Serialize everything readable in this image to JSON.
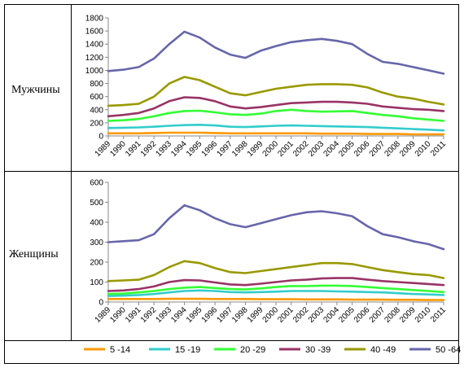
{
  "rows": [
    {
      "label": "Мужчины"
    },
    {
      "label": "Женщины"
    }
  ],
  "legend": {
    "items": [
      {
        "label": "5 -14",
        "color": "#ff9900"
      },
      {
        "label": "15 -19",
        "color": "#33cccc"
      },
      {
        "label": "20 -29",
        "color": "#33ff33"
      },
      {
        "label": "30 -39",
        "color": "#993366"
      },
      {
        "label": "40 -49",
        "color": "#999900"
      },
      {
        "label": "50 -64",
        "color": "#6666aa"
      }
    ]
  },
  "chart_data": [
    {
      "type": "line",
      "row": "Мужчины",
      "x": [
        "1989",
        "1990",
        "1991",
        "1992",
        "1993",
        "1994",
        "1995",
        "1996",
        "1997",
        "1998",
        "1999",
        "2000",
        "2001",
        "2002",
        "2003",
        "2004",
        "2005",
        "2006",
        "2007",
        "2008",
        "2009",
        "2010",
        "2011"
      ],
      "ylim": [
        0,
        1800
      ],
      "yticks": [
        0,
        200,
        400,
        600,
        800,
        1000,
        1200,
        1400,
        1600,
        1800
      ],
      "grid": false,
      "series": [
        {
          "name": "5 -14",
          "color": "#ff9900",
          "values": [
            40,
            40,
            40,
            45,
            50,
            50,
            50,
            45,
            40,
            40,
            40,
            40,
            40,
            40,
            35,
            35,
            35,
            30,
            30,
            30,
            25,
            25,
            25
          ]
        },
        {
          "name": "15 -19",
          "color": "#33cccc",
          "values": [
            120,
            125,
            130,
            140,
            155,
            165,
            170,
            160,
            140,
            135,
            145,
            155,
            160,
            155,
            150,
            145,
            140,
            135,
            125,
            115,
            105,
            95,
            85
          ]
        },
        {
          "name": "20 -29",
          "color": "#33ff33",
          "values": [
            230,
            240,
            260,
            300,
            350,
            380,
            385,
            360,
            330,
            320,
            340,
            380,
            400,
            380,
            370,
            375,
            380,
            350,
            320,
            300,
            270,
            250,
            230
          ]
        },
        {
          "name": "30 -39",
          "color": "#993366",
          "values": [
            300,
            320,
            350,
            420,
            530,
            590,
            580,
            530,
            450,
            420,
            440,
            470,
            500,
            510,
            520,
            520,
            510,
            490,
            450,
            430,
            410,
            400,
            380
          ]
        },
        {
          "name": "40 -49",
          "color": "#999900",
          "values": [
            460,
            470,
            490,
            600,
            800,
            900,
            850,
            750,
            650,
            620,
            670,
            720,
            750,
            780,
            790,
            790,
            780,
            740,
            660,
            600,
            570,
            520,
            480
          ]
        },
        {
          "name": "50 -64",
          "color": "#6666aa",
          "values": [
            990,
            1010,
            1050,
            1180,
            1400,
            1590,
            1500,
            1350,
            1240,
            1190,
            1300,
            1370,
            1430,
            1460,
            1480,
            1450,
            1400,
            1250,
            1130,
            1100,
            1050,
            1000,
            950
          ]
        }
      ]
    },
    {
      "type": "line",
      "row": "Женщины",
      "x": [
        "1989",
        "1990",
        "1991",
        "1992",
        "1993",
        "1994",
        "1995",
        "1996",
        "1997",
        "1998",
        "1999",
        "2000",
        "2001",
        "2002",
        "2003",
        "2004",
        "2005",
        "2006",
        "2007",
        "2008",
        "2009",
        "2010",
        "2011"
      ],
      "ylim": [
        0,
        600
      ],
      "yticks": [
        0,
        100,
        200,
        300,
        400,
        500,
        600
      ],
      "grid": false,
      "series": [
        {
          "name": "5 -14",
          "color": "#ff9900",
          "values": [
            15,
            15,
            15,
            15,
            16,
            16,
            16,
            15,
            15,
            15,
            14,
            14,
            14,
            13,
            13,
            13,
            12,
            12,
            12,
            11,
            11,
            10,
            10
          ]
        },
        {
          "name": "15 -19",
          "color": "#33cccc",
          "values": [
            30,
            32,
            35,
            40,
            48,
            55,
            58,
            55,
            50,
            48,
            50,
            52,
            55,
            55,
            55,
            53,
            52,
            50,
            48,
            44,
            40,
            38,
            35
          ]
        },
        {
          "name": "20 -29",
          "color": "#33ff33",
          "values": [
            40,
            42,
            48,
            55,
            65,
            72,
            75,
            70,
            65,
            63,
            68,
            75,
            80,
            80,
            82,
            82,
            80,
            75,
            70,
            65,
            60,
            55,
            50
          ]
        },
        {
          "name": "30 -39",
          "color": "#993366",
          "values": [
            55,
            58,
            65,
            78,
            100,
            110,
            108,
            98,
            88,
            85,
            92,
            100,
            108,
            112,
            118,
            120,
            120,
            112,
            105,
            100,
            95,
            90,
            85
          ]
        },
        {
          "name": "40 -49",
          "color": "#999900",
          "values": [
            105,
            108,
            112,
            135,
            175,
            205,
            195,
            170,
            150,
            145,
            155,
            165,
            175,
            185,
            195,
            195,
            190,
            175,
            160,
            150,
            140,
            135,
            120
          ]
        },
        {
          "name": "50 -64",
          "color": "#6666aa",
          "values": [
            300,
            305,
            310,
            340,
            420,
            485,
            460,
            420,
            390,
            375,
            395,
            415,
            435,
            450,
            455,
            445,
            430,
            380,
            340,
            325,
            305,
            290,
            265
          ]
        }
      ]
    }
  ]
}
